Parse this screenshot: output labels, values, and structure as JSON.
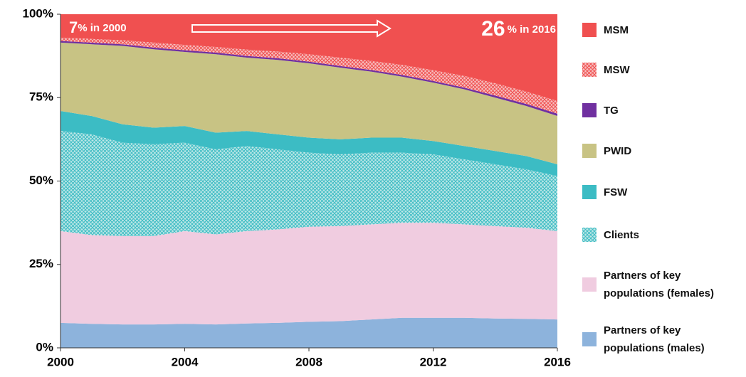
{
  "chart_data": {
    "type": "stacked_area",
    "x": [
      2000,
      2001,
      2002,
      2003,
      2004,
      2005,
      2006,
      2007,
      2008,
      2009,
      2010,
      2011,
      2012,
      2013,
      2014,
      2015,
      2016
    ],
    "xlim": [
      2000,
      2016
    ],
    "xticks": [
      2000,
      2004,
      2008,
      2012,
      2016
    ],
    "ylim": [
      0,
      100
    ],
    "yticks": [
      {
        "value": 0,
        "label": "0%"
      },
      {
        "value": 25,
        "label": "25%"
      },
      {
        "value": 50,
        "label": "50%"
      },
      {
        "value": 75,
        "label": "75%"
      },
      {
        "value": 100,
        "label": "100%"
      }
    ],
    "series": [
      {
        "name": "Partners of key populations (males)",
        "color": "#8db3dc",
        "values": [
          7.5,
          7.2,
          7,
          7,
          7.2,
          7,
          7.3,
          7.5,
          7.8,
          8,
          8.5,
          9,
          9,
          9,
          8.8,
          8.7,
          8.5
        ]
      },
      {
        "name": "Partners of key populations (females)",
        "color": "#f0cce0",
        "values": [
          27.5,
          26.6,
          26.5,
          26.5,
          27.8,
          27,
          27.7,
          28,
          28.5,
          28.5,
          28.5,
          28.5,
          28.5,
          28,
          27.7,
          27.3,
          26.5
        ]
      },
      {
        "name": "Clients",
        "color": "#3cbcc4",
        "hatched": true,
        "values": [
          30,
          30.2,
          28,
          27.5,
          26.5,
          25.5,
          25.5,
          24,
          22.2,
          21.5,
          21.5,
          21,
          20.5,
          19.5,
          18.5,
          17.5,
          16.5
        ]
      },
      {
        "name": "FSW",
        "color": "#3cbcc4",
        "values": [
          6,
          5.5,
          5.5,
          5,
          5,
          5,
          4.5,
          4.5,
          4.5,
          4.5,
          4.5,
          4.5,
          4,
          4,
          4,
          4,
          3.5
        ]
      },
      {
        "name": "PWID",
        "color": "#c8c384",
        "values": [
          20.5,
          21.5,
          23.5,
          23.5,
          22.2,
          23.5,
          22,
          22.3,
          22.3,
          21.5,
          19.8,
          18.3,
          17.5,
          17,
          16,
          15,
          14.5
        ]
      },
      {
        "name": "TG",
        "color": "#7030a0",
        "values": [
          0.5,
          0.5,
          0.5,
          0.5,
          0.5,
          0.5,
          0.5,
          0.5,
          0.5,
          0.5,
          0.5,
          0.5,
          0.5,
          0.5,
          0.6,
          0.6,
          0.7
        ]
      },
      {
        "name": "MSW",
        "color": "#f05050",
        "hatched": true,
        "values": [
          1,
          1.1,
          1.2,
          1.5,
          1.6,
          1.7,
          1.9,
          2,
          2.2,
          2.5,
          2.7,
          3,
          3.2,
          3.5,
          3.7,
          3.7,
          3.8
        ]
      },
      {
        "name": "MSM",
        "color": "#f05050",
        "values": [
          7,
          7.4,
          7.8,
          8.5,
          9.2,
          9.8,
          10.6,
          11.2,
          12,
          13,
          14,
          15.2,
          16.8,
          18.5,
          20.7,
          23.2,
          26
        ]
      }
    ],
    "annotations": [
      {
        "number": "7",
        "text": "% in 2000"
      },
      {
        "number": "26",
        "text": "% in 2016"
      }
    ]
  }
}
